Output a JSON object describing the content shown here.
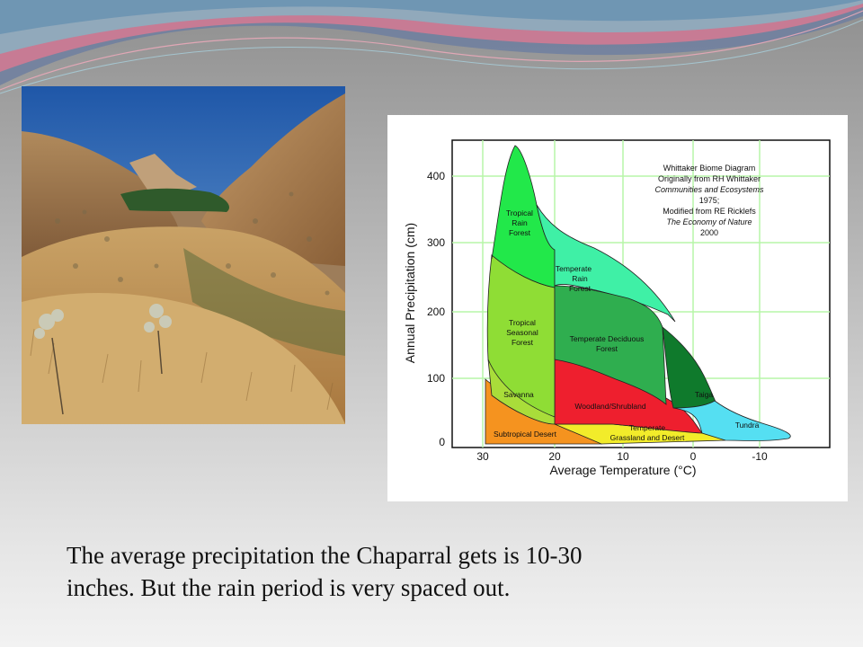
{
  "slide": {
    "caption": {
      "line1": "The average precipitation the Chaparral gets is 10-30",
      "line2": "inches. But the rain period is very spaced out."
    }
  },
  "diagram": {
    "y_axis_label": "Annual Precipitation (cm)",
    "x_axis_label": "Average Temperature (°C)",
    "x_ticks": [
      "30",
      "20",
      "10",
      "0",
      "-10"
    ],
    "y_ticks": [
      "400",
      "300",
      "200",
      "100",
      "0"
    ],
    "credit": {
      "line1": "Whittaker Biome Diagram",
      "line2": "Originally from RH Whittaker",
      "line3": "Communities and Ecosystems",
      "line4": "1975;",
      "line5": "Modified from RE Ricklefs",
      "line6": "The Economy of Nature",
      "line7": "2000"
    },
    "biomes": {
      "tropical_rain_forest": [
        "Tropical",
        "Rain",
        "Forest"
      ],
      "temperate_rain_forest": [
        "Temperate",
        "Rain",
        "Forest"
      ],
      "tropical_seasonal_forest": [
        "Tropical",
        "Seasonal",
        "Forest"
      ],
      "temperate_deciduous_forest": [
        "Temperate Deciduous",
        "Forest"
      ],
      "taiga": "Taiga",
      "tundra": "Tundra",
      "savanna": "Savanna",
      "woodland_shrubland": "Woodland/Shrubland",
      "temperate_grassland_desert": [
        "Temperate",
        "Grassland and Desert"
      ],
      "subtropical_desert": "Subtropical Desert"
    },
    "colors": {
      "tropical_rain_forest": "#22e84a",
      "temperate_rain_forest": "#3ff0a6",
      "tropical_seasonal_forest": "#8fdd35",
      "temperate_deciduous_forest": "#2fae4f",
      "taiga": "#0f7a2c",
      "tundra": "#55dff2",
      "savanna": "#a9dd3a",
      "woodland_shrubland": "#ee1f2e",
      "temperate_grassland_desert": "#f2ec2a",
      "subtropical_desert": "#f5931f",
      "grid": "#b7f5a8"
    }
  }
}
